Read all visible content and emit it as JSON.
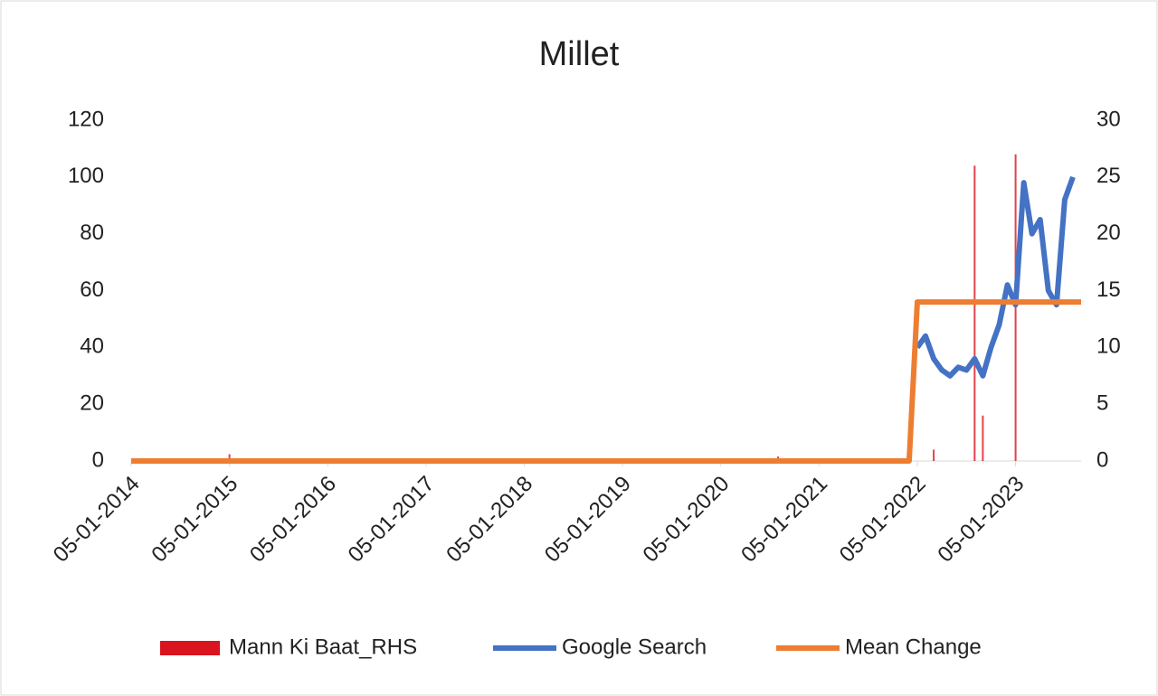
{
  "chart_data": {
    "type": "line",
    "title": "Millet",
    "xlim": [
      "05-01-2014",
      "05-09-2023"
    ],
    "xticks": [
      "05-01-2014",
      "05-01-2015",
      "05-01-2016",
      "05-01-2017",
      "05-01-2018",
      "05-01-2019",
      "05-01-2020",
      "05-01-2021",
      "05-01-2022",
      "05-01-2023"
    ],
    "ylim": [
      0,
      120
    ],
    "yticks": [
      0,
      20,
      40,
      60,
      80,
      100,
      120
    ],
    "y2lim": [
      0,
      30
    ],
    "y2ticks": [
      0,
      5,
      10,
      15,
      20,
      25,
      30
    ],
    "series": [
      {
        "name": "Mann Ki Baat_RHS",
        "type": "bar",
        "axis": "y2",
        "color": "#d9141e",
        "x": [
          "05-01-2015",
          "05-08-2020",
          "05-03-2022",
          "05-08-2022",
          "05-09-2022",
          "05-01-2023"
        ],
        "values": [
          0.6,
          0.4,
          1,
          26,
          4,
          27
        ]
      },
      {
        "name": "Google Search",
        "type": "line",
        "color": "#4472c4",
        "x": [
          "05-01-2022",
          "05-02-2022",
          "05-03-2022",
          "05-04-2022",
          "05-05-2022",
          "05-06-2022",
          "05-07-2022",
          "05-08-2022",
          "05-09-2022",
          "05-10-2022",
          "05-11-2022",
          "05-12-2022",
          "05-01-2023",
          "05-02-2023",
          "05-03-2023",
          "05-04-2023",
          "05-05-2023",
          "05-06-2023",
          "05-07-2023",
          "05-08-2023"
        ],
        "values": [
          40,
          44,
          36,
          32,
          30,
          33,
          32,
          36,
          30,
          40,
          48,
          62,
          55,
          98,
          80,
          85,
          60,
          55,
          92,
          100
        ]
      },
      {
        "name": "Mean Change",
        "type": "line",
        "color": "#ed7d31",
        "x": [
          "05-01-2014",
          "05-12-2021",
          "05-01-2022",
          "05-09-2023"
        ],
        "values": [
          0,
          0,
          56,
          56
        ]
      }
    ]
  }
}
